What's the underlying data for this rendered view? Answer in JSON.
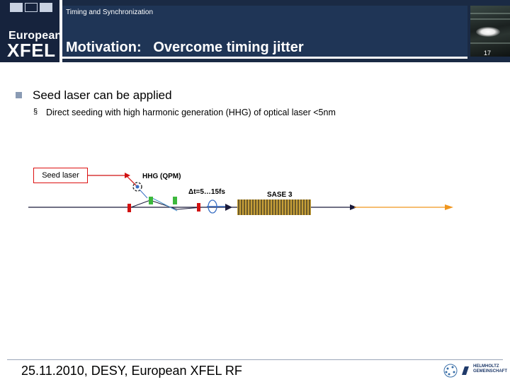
{
  "header": {
    "section": "Timing and Synchronization",
    "title": "Motivation:   Overcome timing jitter",
    "page_number": "17",
    "logo": {
      "line1": "European",
      "line2": "XFEL"
    }
  },
  "bullets": {
    "level1": "Seed laser can be applied",
    "level2": "Direct seeding with high harmonic generation (HHG) of optical laser <5nm"
  },
  "diagram": {
    "seed_laser_label": "Seed laser",
    "hhg_label": "HHG (QPM)",
    "jitter_label": "Δt=5…15fs",
    "sase_label": "SASE 3"
  },
  "footer": {
    "text": "25.11.2010, DESY, European XFEL RF",
    "partner_logo": {
      "line1": "HELMHOLTZ",
      "line2": "GEMEINSCHAFT"
    }
  },
  "colors": {
    "header_dark": "#1a2a44",
    "header_mid": "#1f3556",
    "bullet_marker": "#8a9bb4",
    "laser_red": "#d11111",
    "magnet_green": "#3cb83c",
    "xray_orange": "#f0961e"
  }
}
